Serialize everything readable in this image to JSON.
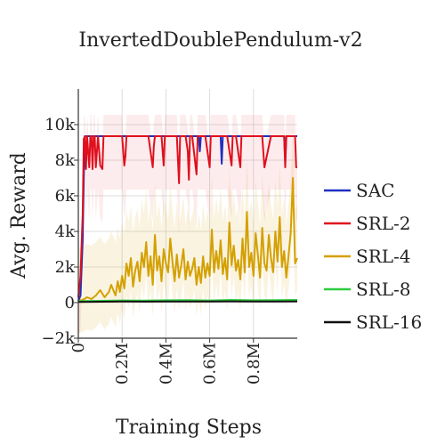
{
  "chart_data": {
    "type": "line",
    "title": "InvertedDoublePendulum-v2",
    "xlabel": "Training Steps",
    "ylabel": "Avg. Reward",
    "xlim": [
      0,
      1000000
    ],
    "ylim": [
      -2000,
      12000
    ],
    "x_ticks": [
      0,
      200000,
      400000,
      600000,
      800000
    ],
    "x_tick_labels": [
      "0",
      "0.2M",
      "0.4M",
      "0.6M",
      "0.8M"
    ],
    "y_ticks": [
      -2000,
      0,
      2000,
      4000,
      6000,
      8000,
      10000
    ],
    "y_tick_labels": [
      "−2k",
      "0",
      "2k",
      "4k",
      "6k",
      "8k",
      "10k"
    ],
    "grid": true,
    "legend_position": "right",
    "series": [
      {
        "name": "SAC",
        "color": "#1f2fbf",
        "x": [
          0,
          10000,
          20000,
          25000,
          30000,
          40000,
          60000,
          100000,
          150000,
          200000,
          250000,
          300000,
          350000,
          400000,
          450000,
          500000,
          550000,
          555000,
          560000,
          565000,
          600000,
          650000,
          655000,
          660000,
          670000,
          700000,
          750000,
          800000,
          850000,
          900000,
          940000,
          945000,
          950000,
          1000000
        ],
        "y": [
          100,
          400,
          3500,
          7000,
          9350,
          9350,
          9350,
          9350,
          9350,
          9350,
          9350,
          9350,
          9350,
          9350,
          9350,
          9350,
          9350,
          8500,
          9350,
          9350,
          9350,
          9350,
          7800,
          9350,
          9350,
          9350,
          9350,
          9350,
          9350,
          9350,
          9350,
          7900,
          9350,
          9350
        ]
      },
      {
        "name": "SRL-2",
        "color": "#e0101e",
        "x": [
          0,
          10000,
          20000,
          25000,
          30000,
          35000,
          40000,
          45000,
          50000,
          55000,
          60000,
          65000,
          70000,
          75000,
          80000,
          90000,
          100000,
          110000,
          115000,
          120000,
          125000,
          130000,
          140000,
          150000,
          160000,
          170000,
          200000,
          210000,
          215000,
          220000,
          230000,
          260000,
          300000,
          320000,
          340000,
          345000,
          350000,
          380000,
          390000,
          395000,
          400000,
          420000,
          450000,
          460000,
          465000,
          470000,
          490000,
          500000,
          505000,
          510000,
          520000,
          540000,
          545000,
          550000,
          580000,
          600000,
          605000,
          610000,
          620000,
          640000,
          680000,
          700000,
          705000,
          710000,
          720000,
          740000,
          745000,
          750000,
          780000,
          800000,
          840000,
          850000,
          880000,
          900000,
          930000,
          940000,
          945000,
          950000,
          990000,
          995000,
          1000000
        ],
        "y": [
          300,
          1500,
          5000,
          9200,
          9350,
          7500,
          9350,
          8500,
          7600,
          9350,
          9350,
          7500,
          9350,
          9350,
          7600,
          9350,
          7700,
          7500,
          9350,
          9350,
          9350,
          9350,
          9350,
          9350,
          9350,
          9350,
          9350,
          7700,
          8200,
          9350,
          9350,
          9350,
          9350,
          9350,
          7600,
          8800,
          9350,
          9350,
          7700,
          9350,
          9350,
          9350,
          9350,
          6700,
          9350,
          9350,
          9350,
          8500,
          6900,
          9350,
          9350,
          7200,
          9350,
          9350,
          9350,
          7600,
          9350,
          9350,
          9350,
          9350,
          9350,
          7700,
          9350,
          9350,
          9350,
          7600,
          9350,
          9350,
          9350,
          9350,
          9350,
          7600,
          9350,
          9350,
          9350,
          9350,
          7600,
          9350,
          9350,
          7600,
          7600
        ]
      },
      {
        "name": "SRL-4",
        "color": "#d4a000",
        "x": [
          0,
          20000,
          40000,
          60000,
          80000,
          100000,
          120000,
          140000,
          150000,
          160000,
          170000,
          180000,
          190000,
          200000,
          210000,
          220000,
          230000,
          240000,
          250000,
          260000,
          270000,
          280000,
          290000,
          300000,
          310000,
          320000,
          330000,
          340000,
          350000,
          360000,
          370000,
          380000,
          390000,
          400000,
          410000,
          420000,
          430000,
          440000,
          450000,
          460000,
          470000,
          480000,
          490000,
          500000,
          510000,
          520000,
          530000,
          540000,
          550000,
          560000,
          570000,
          580000,
          590000,
          600000,
          610000,
          620000,
          630000,
          640000,
          650000,
          660000,
          670000,
          680000,
          690000,
          700000,
          710000,
          720000,
          730000,
          740000,
          750000,
          760000,
          770000,
          780000,
          790000,
          800000,
          810000,
          820000,
          830000,
          840000,
          850000,
          860000,
          870000,
          880000,
          890000,
          900000,
          910000,
          920000,
          930000,
          940000,
          950000,
          960000,
          970000,
          980000,
          990000,
          1000000
        ],
        "y": [
          100,
          150,
          300,
          200,
          400,
          700,
          300,
          600,
          1000,
          700,
          400,
          1200,
          600,
          1500,
          800,
          2200,
          1500,
          2500,
          900,
          1800,
          2300,
          1200,
          2800,
          2000,
          3400,
          1500,
          2600,
          1000,
          3800,
          1800,
          2600,
          1200,
          3000,
          2200,
          1700,
          3600,
          2300,
          1200,
          2700,
          1400,
          2100,
          3000,
          1300,
          2300,
          1500,
          1900,
          2500,
          1000,
          2000,
          1100,
          2600,
          1400,
          2200,
          1500,
          4100,
          1700,
          2900,
          1900,
          3500,
          1600,
          2500,
          1300,
          4500,
          2100,
          3200,
          1800,
          2400,
          1300,
          3600,
          1700,
          5100,
          2000,
          2800,
          1500,
          3900,
          2700,
          1400,
          4200,
          2200,
          1800,
          3800,
          2500,
          1700,
          4000,
          2300,
          4800,
          2000,
          2900,
          1400,
          2600,
          3900,
          7000,
          2200,
          2500
        ]
      },
      {
        "name": "SRL-8",
        "color": "#2ecc40",
        "x": [
          0,
          100000,
          200000,
          300000,
          400000,
          500000,
          600000,
          700000,
          800000,
          900000,
          1000000
        ],
        "y": [
          80,
          100,
          120,
          110,
          130,
          140,
          120,
          150,
          130,
          140,
          150
        ]
      },
      {
        "name": "SRL-16",
        "color": "#111111",
        "x": [
          0,
          100000,
          200000,
          300000,
          400000,
          500000,
          600000,
          700000,
          800000,
          900000,
          1000000
        ],
        "y": [
          40,
          50,
          60,
          55,
          60,
          65,
          60,
          70,
          60,
          65,
          70
        ]
      }
    ]
  }
}
